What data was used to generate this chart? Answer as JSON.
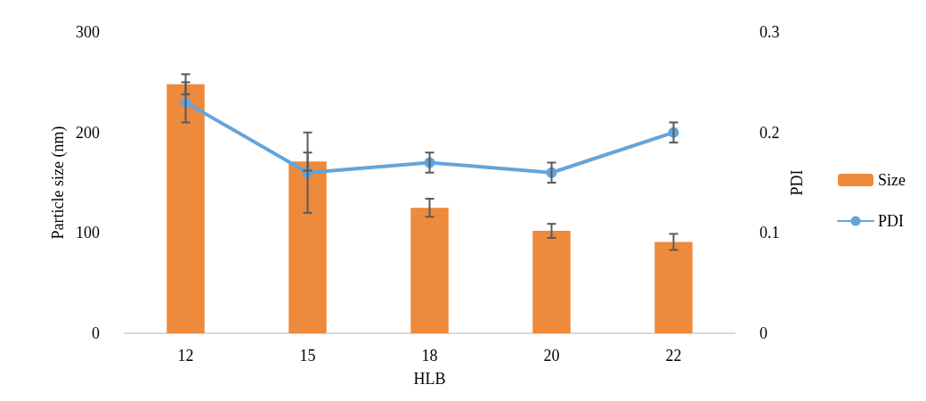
{
  "chart_data": {
    "type": "bar",
    "xlabel": "HLB",
    "ylabel": "Particle size (nm)",
    "y2label": "PDI",
    "categories": [
      "12",
      "15",
      "18",
      "20",
      "22"
    ],
    "series": [
      {
        "name": "Size",
        "color": "#ed8a3c",
        "values": [
          248,
          171,
          125,
          102,
          91
        ],
        "errors": [
          10,
          9,
          9,
          7,
          8
        ]
      },
      {
        "name": "PDI",
        "type": "line",
        "axis": "y2",
        "color": "#64a4da",
        "values": [
          0.23,
          0.16,
          0.17,
          0.16,
          0.2
        ],
        "errors": [
          0.02,
          0.04,
          0.01,
          0.01,
          0.01
        ]
      }
    ],
    "ylim": [
      0,
      300
    ],
    "yticks": [
      0,
      100,
      200,
      300
    ],
    "y2lim": [
      0,
      0.3
    ],
    "y2ticks": [
      0,
      0.1,
      0.2,
      0.3
    ],
    "grid": false,
    "legend": "right",
    "marker": "circle",
    "line_style": "solid"
  }
}
